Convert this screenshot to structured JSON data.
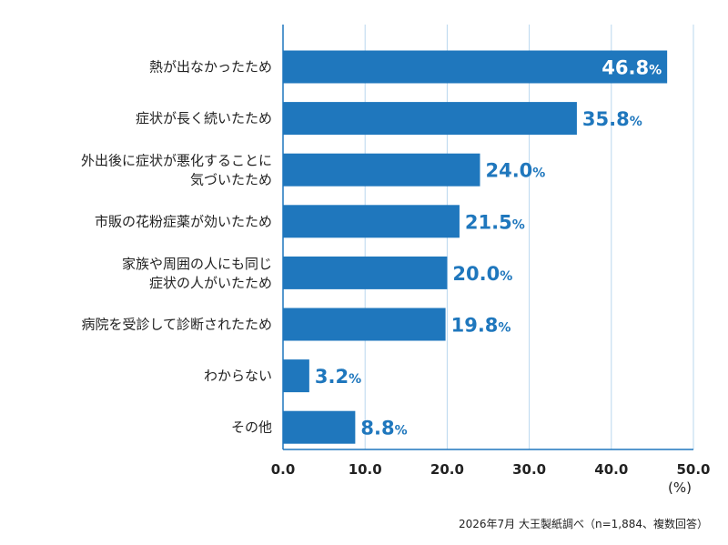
{
  "chart_data": {
    "type": "bar",
    "orientation": "horizontal",
    "categories": [
      [
        "熱が出なかったため"
      ],
      [
        "症状が長く続いたため"
      ],
      [
        "外出後に症状が悪化することに",
        "気づいたため"
      ],
      [
        "市販の花粉症薬が効いたため"
      ],
      [
        "家族や周囲の人にも同じ",
        "症状の人がいたため"
      ],
      [
        "病院を受診して診断されたため"
      ],
      [
        "わからない"
      ],
      [
        "その他"
      ]
    ],
    "values": [
      46.8,
      35.8,
      24.0,
      21.5,
      20.0,
      19.8,
      3.2,
      8.8
    ],
    "value_labels": [
      "46.8",
      "35.8",
      "24.0",
      "21.5",
      "20.0",
      "19.8",
      "3.2",
      "8.8"
    ],
    "value_suffix": "%",
    "x_ticks": [
      "0.0",
      "10.0",
      "20.0",
      "30.0",
      "40.0",
      "50.0"
    ],
    "xlim": [
      0,
      50
    ],
    "x_unit": "(%)",
    "grid": "vertical",
    "colors": {
      "bar": "#1f77bd",
      "label_outside": "#1f77bd",
      "label_inside": "#ffffff",
      "grid": "#b9d7ee",
      "axis": "#1f77bd"
    }
  },
  "footnote": "2026年7月 大王製紙調べ（n=1,884、複数回答）"
}
